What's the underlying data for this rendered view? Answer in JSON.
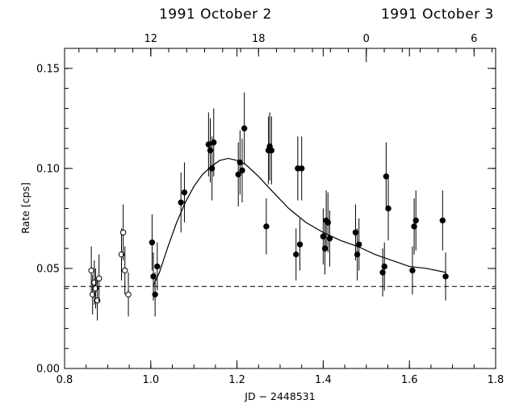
{
  "chart_data": {
    "type": "scatter",
    "title": "",
    "xlabel": "JD − 2448531",
    "ylabel": "Rate [cps]",
    "xlim": [
      0.8,
      1.8
    ],
    "ylim": [
      0.0,
      0.16
    ],
    "x_ticks": [
      0.8,
      1.0,
      1.2,
      1.4,
      1.6,
      1.8
    ],
    "x_tick_labels": [
      "0.8",
      "1.0",
      "1.2",
      "1.4",
      "1.6",
      "1.8"
    ],
    "y_ticks": [
      0.0,
      0.05,
      0.1,
      0.15
    ],
    "y_tick_labels": [
      "0.00",
      "0.05",
      "0.10",
      "0.15"
    ],
    "top_axis": {
      "ticks": [
        {
          "x": 1.0,
          "label": "12"
        },
        {
          "x": 1.25,
          "label": "18"
        },
        {
          "x": 1.5,
          "label": "0"
        },
        {
          "x": 1.75,
          "label": "6"
        }
      ],
      "dates": [
        {
          "x": 1.15,
          "label": "1991 October 2"
        },
        {
          "x": 1.665,
          "label": "1991 October 3"
        }
      ],
      "day_boundary": 1.5
    },
    "grid": false,
    "baseline": {
      "style": "dashed",
      "y": 0.041
    },
    "series": [
      {
        "marker": "open-circle",
        "points": [
          {
            "x": 0.862,
            "y": 0.049,
            "err": 0.012
          },
          {
            "x": 0.865,
            "y": 0.037,
            "err": 0.01
          },
          {
            "x": 0.869,
            "y": 0.043,
            "err": 0.011
          },
          {
            "x": 0.872,
            "y": 0.04,
            "err": 0.01
          },
          {
            "x": 0.876,
            "y": 0.034,
            "err": 0.01
          },
          {
            "x": 0.88,
            "y": 0.045,
            "err": 0.012
          },
          {
            "x": 0.932,
            "y": 0.057,
            "err": 0.013
          },
          {
            "x": 0.936,
            "y": 0.068,
            "err": 0.014
          },
          {
            "x": 0.94,
            "y": 0.049,
            "err": 0.012
          },
          {
            "x": 0.948,
            "y": 0.037,
            "err": 0.011
          }
        ]
      },
      {
        "marker": "filled-circle",
        "points": [
          {
            "x": 1.003,
            "y": 0.063,
            "err": 0.014
          },
          {
            "x": 1.006,
            "y": 0.046,
            "err": 0.012
          },
          {
            "x": 1.01,
            "y": 0.037,
            "err": 0.011
          },
          {
            "x": 1.015,
            "y": 0.051,
            "err": 0.012
          },
          {
            "x": 1.07,
            "y": 0.083,
            "err": 0.015
          },
          {
            "x": 1.078,
            "y": 0.088,
            "err": 0.015
          },
          {
            "x": 1.134,
            "y": 0.112,
            "err": 0.016
          },
          {
            "x": 1.138,
            "y": 0.109,
            "err": 0.016
          },
          {
            "x": 1.142,
            "y": 0.1,
            "err": 0.016
          },
          {
            "x": 1.146,
            "y": 0.113,
            "err": 0.017
          },
          {
            "x": 1.203,
            "y": 0.097,
            "err": 0.016
          },
          {
            "x": 1.207,
            "y": 0.103,
            "err": 0.016
          },
          {
            "x": 1.212,
            "y": 0.099,
            "err": 0.016
          },
          {
            "x": 1.217,
            "y": 0.12,
            "err": 0.018
          },
          {
            "x": 1.268,
            "y": 0.071,
            "err": 0.014
          },
          {
            "x": 1.273,
            "y": 0.109,
            "err": 0.017
          },
          {
            "x": 1.276,
            "y": 0.111,
            "err": 0.017
          },
          {
            "x": 1.28,
            "y": 0.109,
            "err": 0.017
          },
          {
            "x": 1.337,
            "y": 0.057,
            "err": 0.013
          },
          {
            "x": 1.341,
            "y": 0.1,
            "err": 0.016
          },
          {
            "x": 1.346,
            "y": 0.062,
            "err": 0.013
          },
          {
            "x": 1.35,
            "y": 0.1,
            "err": 0.016
          },
          {
            "x": 1.4,
            "y": 0.066,
            "err": 0.014
          },
          {
            "x": 1.404,
            "y": 0.06,
            "err": 0.013
          },
          {
            "x": 1.407,
            "y": 0.074,
            "err": 0.015
          },
          {
            "x": 1.411,
            "y": 0.073,
            "err": 0.015
          },
          {
            "x": 1.415,
            "y": 0.065,
            "err": 0.014
          },
          {
            "x": 1.475,
            "y": 0.068,
            "err": 0.014
          },
          {
            "x": 1.479,
            "y": 0.057,
            "err": 0.013
          },
          {
            "x": 1.483,
            "y": 0.062,
            "err": 0.013
          },
          {
            "x": 1.538,
            "y": 0.048,
            "err": 0.012
          },
          {
            "x": 1.542,
            "y": 0.051,
            "err": 0.012
          },
          {
            "x": 1.546,
            "y": 0.096,
            "err": 0.017
          },
          {
            "x": 1.551,
            "y": 0.08,
            "err": 0.016
          },
          {
            "x": 1.607,
            "y": 0.049,
            "err": 0.012
          },
          {
            "x": 1.611,
            "y": 0.071,
            "err": 0.014
          },
          {
            "x": 1.615,
            "y": 0.074,
            "err": 0.015
          },
          {
            "x": 1.677,
            "y": 0.074,
            "err": 0.015
          },
          {
            "x": 1.684,
            "y": 0.046,
            "err": 0.012
          }
        ]
      },
      {
        "style": "solid-curve",
        "points": [
          {
            "x": 1.005,
            "y": 0.041
          },
          {
            "x": 1.02,
            "y": 0.048
          },
          {
            "x": 1.04,
            "y": 0.061
          },
          {
            "x": 1.06,
            "y": 0.073
          },
          {
            "x": 1.08,
            "y": 0.083
          },
          {
            "x": 1.1,
            "y": 0.091
          },
          {
            "x": 1.12,
            "y": 0.097
          },
          {
            "x": 1.14,
            "y": 0.101
          },
          {
            "x": 1.16,
            "y": 0.104
          },
          {
            "x": 1.18,
            "y": 0.105
          },
          {
            "x": 1.2,
            "y": 0.104
          },
          {
            "x": 1.22,
            "y": 0.102
          },
          {
            "x": 1.25,
            "y": 0.096
          },
          {
            "x": 1.28,
            "y": 0.089
          },
          {
            "x": 1.32,
            "y": 0.08
          },
          {
            "x": 1.36,
            "y": 0.073
          },
          {
            "x": 1.4,
            "y": 0.068
          },
          {
            "x": 1.44,
            "y": 0.064
          },
          {
            "x": 1.48,
            "y": 0.061
          },
          {
            "x": 1.52,
            "y": 0.057
          },
          {
            "x": 1.56,
            "y": 0.054
          },
          {
            "x": 1.6,
            "y": 0.051
          },
          {
            "x": 1.64,
            "y": 0.05
          },
          {
            "x": 1.685,
            "y": 0.048
          }
        ]
      }
    ]
  }
}
